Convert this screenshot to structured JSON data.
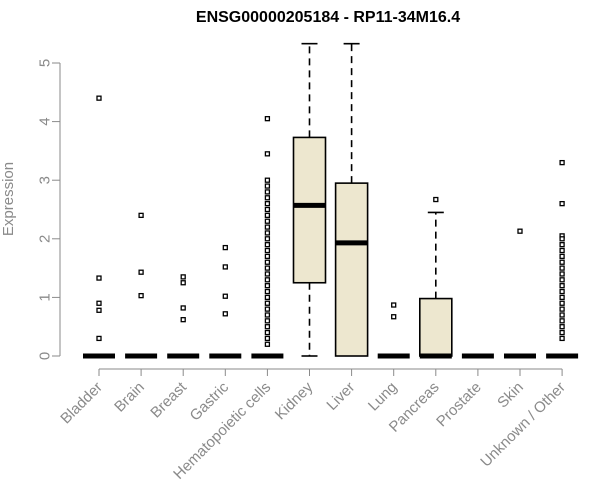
{
  "chart_data": {
    "type": "box",
    "title": "ENSG00000205184 - RP11-34M16.4",
    "xlabel": "",
    "ylabel": "Expression",
    "ylim": [
      0,
      5.35
    ],
    "yticks": [
      0,
      1,
      2,
      3,
      4,
      5
    ],
    "categories": [
      "Bladder",
      "Brain",
      "Breast",
      "Gastric",
      "Hematopoietic cells",
      "Kidney",
      "Liver",
      "Lung",
      "Pancreas",
      "Prostate",
      "Skin",
      "Unknown / Other"
    ],
    "box_color": "#ede7cf",
    "boxes": [
      {
        "category": "Bladder",
        "min": 0,
        "q1": 0,
        "median": 0,
        "q3": 0,
        "max": 0,
        "outliers": [
          4.4,
          1.33,
          0.9,
          0.78,
          0.3
        ]
      },
      {
        "category": "Brain",
        "min": 0,
        "q1": 0,
        "median": 0,
        "q3": 0,
        "max": 0,
        "outliers": [
          2.4,
          1.43,
          1.03
        ]
      },
      {
        "category": "Breast",
        "min": 0,
        "q1": 0,
        "median": 0,
        "q3": 0,
        "max": 0,
        "outliers": [
          1.35,
          1.25,
          0.82,
          0.62
        ]
      },
      {
        "category": "Gastric",
        "min": 0,
        "q1": 0,
        "median": 0,
        "q3": 0,
        "max": 0,
        "outliers": [
          1.85,
          1.52,
          1.02,
          0.72
        ]
      },
      {
        "category": "Hematopoietic cells",
        "min": 0,
        "q1": 0,
        "median": 0,
        "q3": 0,
        "max": 0,
        "outliers": [
          4.05,
          3.45,
          3.0,
          2.9,
          2.8,
          2.7,
          2.6,
          2.5,
          2.4,
          2.3,
          2.2,
          2.1,
          2.0,
          1.9,
          1.8,
          1.7,
          1.6,
          1.5,
          1.4,
          1.3,
          1.2,
          1.1,
          1.0,
          0.9,
          0.8,
          0.7,
          0.6,
          0.5,
          0.4,
          0.3,
          0.2
        ]
      },
      {
        "category": "Kidney",
        "min": 0,
        "q1": 1.25,
        "median": 2.57,
        "q3": 3.73,
        "max": 5.33,
        "outliers": []
      },
      {
        "category": "Liver",
        "min": 0,
        "q1": 0,
        "median": 1.93,
        "q3": 2.95,
        "max": 5.33,
        "outliers": []
      },
      {
        "category": "Lung",
        "min": 0,
        "q1": 0,
        "median": 0,
        "q3": 0,
        "max": 0,
        "outliers": [
          0.87,
          0.67
        ]
      },
      {
        "category": "Pancreas",
        "min": 0,
        "q1": 0,
        "median": 0,
        "q3": 0.98,
        "max": 2.45,
        "outliers": [
          2.67
        ]
      },
      {
        "category": "Prostate",
        "min": 0,
        "q1": 0,
        "median": 0,
        "q3": 0,
        "max": 0,
        "outliers": []
      },
      {
        "category": "Skin",
        "min": 0,
        "q1": 0,
        "median": 0,
        "q3": 0,
        "max": 0,
        "outliers": [
          2.13
        ]
      },
      {
        "category": "Unknown / Other",
        "min": 0,
        "q1": 0,
        "median": 0,
        "q3": 0,
        "max": 0,
        "outliers": [
          3.3,
          2.6,
          2.05,
          2.0,
          1.9,
          1.8,
          1.7,
          1.6,
          1.5,
          1.4,
          1.3,
          1.2,
          1.1,
          1.0,
          0.9,
          0.8,
          0.7,
          0.6,
          0.5,
          0.4,
          0.3
        ]
      }
    ]
  }
}
